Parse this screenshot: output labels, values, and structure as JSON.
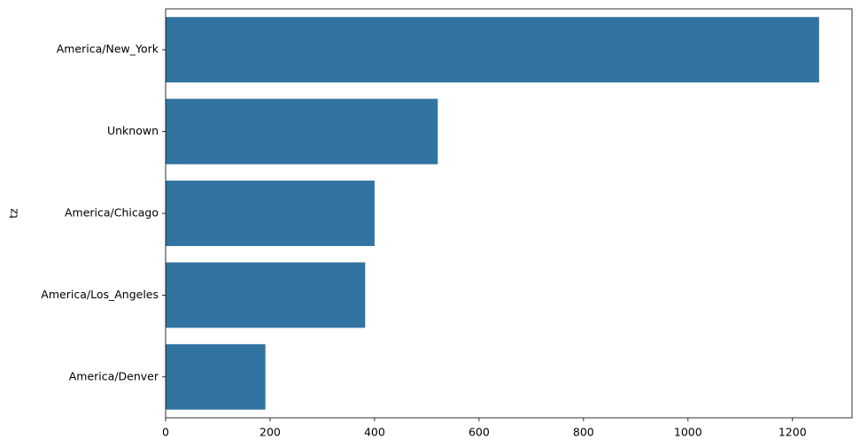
{
  "chart_data": {
    "type": "barh",
    "ylabel": "tz",
    "categories": [
      "America/New_York",
      "Unknown",
      "America/Chicago",
      "America/Los_Angeles",
      "America/Denver"
    ],
    "values": [
      1251,
      521,
      400,
      382,
      191
    ],
    "color": "#3274a1",
    "xlim": [
      0,
      1314
    ],
    "xticks": [
      0,
      200,
      400,
      600,
      800,
      1000,
      1200
    ]
  }
}
